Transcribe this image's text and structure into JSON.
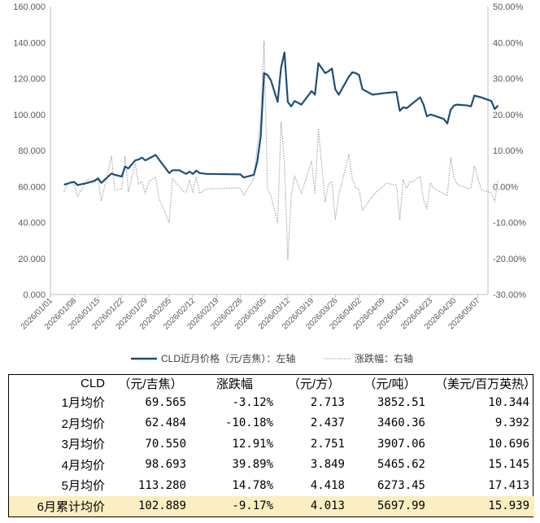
{
  "chart_data": {
    "type": "line",
    "left_axis": {
      "ticks": [
        "0.000",
        "20.000",
        "40.000",
        "60.000",
        "80.000",
        "100.000",
        "120.000",
        "140.000",
        "160.000"
      ],
      "range": [
        0,
        160
      ]
    },
    "right_axis": {
      "ticks": [
        "-30.00%",
        "-20.00%",
        "-10.00%",
        "0.00%",
        "10.00%",
        "20.00%",
        "30.00%",
        "40.00%",
        "50.00%"
      ],
      "range": [
        -30,
        50
      ]
    },
    "x_ticks": [
      "2026/01/01",
      "2026/01/08",
      "2026/01/15",
      "2026/01/22",
      "2026/01/29",
      "2026/02/05",
      "2026/02/12",
      "2026/02/19",
      "2026/02/26",
      "2026/03/05",
      "2026/03/12",
      "2026/03/19",
      "2026/03/26",
      "2026/04/02",
      "2026/04/09",
      "2026/04/16",
      "2026/04/23",
      "2026/04/30",
      "2026/05/07"
    ],
    "x_range": [
      "2026/01/01",
      "2026/05/10"
    ],
    "series": [
      {
        "name": "CLD近月价格（元/吉焦）：左轴",
        "axis": "left",
        "color": "#1f4e79",
        "style": "solid",
        "points": [
          [
            "2026/01/05",
            61.0
          ],
          [
            "2026/01/06",
            61.5
          ],
          [
            "2026/01/07",
            62.2
          ],
          [
            "2026/01/08",
            62.5
          ],
          [
            "2026/01/09",
            60.8
          ],
          [
            "2026/01/12",
            62.0
          ],
          [
            "2026/01/13",
            62.6
          ],
          [
            "2026/01/14",
            63.2
          ],
          [
            "2026/01/15",
            64.5
          ],
          [
            "2026/01/16",
            62.0
          ],
          [
            "2026/01/19",
            67.2
          ],
          [
            "2026/01/20",
            66.5
          ],
          [
            "2026/01/21",
            66.0
          ],
          [
            "2026/01/22",
            65.5
          ],
          [
            "2026/01/23",
            71.0
          ],
          [
            "2026/01/24",
            70.0
          ],
          [
            "2026/01/26",
            74.5
          ],
          [
            "2026/01/27",
            75.0
          ],
          [
            "2026/01/28",
            76.0
          ],
          [
            "2026/01/29",
            74.5
          ],
          [
            "2026/01/30",
            75.5
          ],
          [
            "2026/02/01",
            77.5
          ],
          [
            "2026/02/02",
            75.0
          ],
          [
            "2026/02/05",
            67.5
          ],
          [
            "2026/02/06",
            69.0
          ],
          [
            "2026/02/08",
            69.0
          ],
          [
            "2026/02/09",
            68.0
          ],
          [
            "2026/02/10",
            67.0
          ],
          [
            "2026/02/11",
            68.2
          ],
          [
            "2026/02/12",
            67.0
          ],
          [
            "2026/02/13",
            68.8
          ],
          [
            "2026/02/14",
            67.5
          ],
          [
            "2026/02/16",
            67.0
          ],
          [
            "2026/02/26",
            66.7
          ],
          [
            "2026/02/27",
            65.0
          ],
          [
            "2026/03/02",
            66.5
          ],
          [
            "2026/03/03",
            74.0
          ],
          [
            "2026/03/04",
            88.0
          ],
          [
            "2026/03/05",
            123.0
          ],
          [
            "2026/03/06",
            122.0
          ],
          [
            "2026/03/07",
            119.0
          ],
          [
            "2026/03/09",
            107.0
          ],
          [
            "2026/03/10",
            126.0
          ],
          [
            "2026/03/11",
            134.5
          ],
          [
            "2026/03/12",
            107.0
          ],
          [
            "2026/03/13",
            104.5
          ],
          [
            "2026/03/14",
            107.5
          ],
          [
            "2026/03/16",
            105.5
          ],
          [
            "2026/03/19",
            113.0
          ],
          [
            "2026/03/20",
            111.0
          ],
          [
            "2026/03/21",
            128.5
          ],
          [
            "2026/03/23",
            123.0
          ],
          [
            "2026/03/24",
            124.0
          ],
          [
            "2026/03/25",
            125.5
          ],
          [
            "2026/03/26",
            114.0
          ],
          [
            "2026/03/27",
            111.0
          ],
          [
            "2026/03/30",
            121.0
          ],
          [
            "2026/03/31",
            123.5
          ],
          [
            "2026/04/01",
            123.0
          ],
          [
            "2026/04/02",
            122.0
          ],
          [
            "2026/04/03",
            114.0
          ],
          [
            "2026/04/06",
            111.0
          ],
          [
            "2026/04/10",
            112.0
          ],
          [
            "2026/04/13",
            112.5
          ],
          [
            "2026/04/14",
            102.0
          ],
          [
            "2026/04/15",
            104.0
          ],
          [
            "2026/04/16",
            103.5
          ],
          [
            "2026/04/17",
            105.0
          ],
          [
            "2026/04/18",
            106.5
          ],
          [
            "2026/04/20",
            109.5
          ],
          [
            "2026/04/21",
            105.5
          ],
          [
            "2026/04/22",
            99.0
          ],
          [
            "2026/04/23",
            100.0
          ],
          [
            "2026/04/24",
            99.5
          ],
          [
            "2026/04/27",
            97.5
          ],
          [
            "2026/04/28",
            95.0
          ],
          [
            "2026/04/29",
            102.5
          ],
          [
            "2026/04/30",
            105.0
          ],
          [
            "2026/05/01",
            105.5
          ],
          [
            "2026/05/04",
            105.0
          ],
          [
            "2026/05/05",
            104.5
          ],
          [
            "2026/05/06",
            110.5
          ],
          [
            "2026/05/08",
            109.5
          ],
          [
            "2026/05/11",
            107.5
          ],
          [
            "2026/05/12",
            103.0
          ],
          [
            "2026/05/13",
            105.0
          ]
        ]
      },
      {
        "name": "涨跌幅：右轴",
        "axis": "right",
        "color": "#a6a6a6",
        "style": "dotted",
        "points": [
          [
            "2026/01/05",
            -1.5
          ],
          [
            "2026/01/06",
            0.8
          ],
          [
            "2026/01/07",
            1.1
          ],
          [
            "2026/01/08",
            0.5
          ],
          [
            "2026/01/09",
            -2.8
          ],
          [
            "2026/01/12",
            2.0
          ],
          [
            "2026/01/13",
            1.0
          ],
          [
            "2026/01/14",
            1.0
          ],
          [
            "2026/01/15",
            2.1
          ],
          [
            "2026/01/16",
            -3.9
          ],
          [
            "2026/01/19",
            8.4
          ],
          [
            "2026/01/20",
            -1.0
          ],
          [
            "2026/01/21",
            -0.8
          ],
          [
            "2026/01/22",
            -0.8
          ],
          [
            "2026/01/23",
            8.4
          ],
          [
            "2026/01/24",
            -1.4
          ],
          [
            "2026/01/26",
            6.4
          ],
          [
            "2026/01/27",
            0.7
          ],
          [
            "2026/01/28",
            1.3
          ],
          [
            "2026/01/29",
            -2.0
          ],
          [
            "2026/01/30",
            1.3
          ],
          [
            "2026/02/01",
            2.6
          ],
          [
            "2026/02/02",
            -3.2
          ],
          [
            "2026/02/05",
            -10.0
          ],
          [
            "2026/02/06",
            2.2
          ],
          [
            "2026/02/08",
            0.0
          ],
          [
            "2026/02/09",
            -1.4
          ],
          [
            "2026/02/10",
            -1.5
          ],
          [
            "2026/02/11",
            1.8
          ],
          [
            "2026/02/12",
            -1.8
          ],
          [
            "2026/02/13",
            2.7
          ],
          [
            "2026/02/14",
            -1.9
          ],
          [
            "2026/02/16",
            -0.7
          ],
          [
            "2026/02/26",
            -0.4
          ],
          [
            "2026/02/27",
            -2.5
          ],
          [
            "2026/03/02",
            2.3
          ],
          [
            "2026/03/03",
            11.3
          ],
          [
            "2026/03/04",
            18.9
          ],
          [
            "2026/03/05",
            40.5
          ],
          [
            "2026/03/06",
            -0.8
          ],
          [
            "2026/03/07",
            -2.5
          ],
          [
            "2026/03/09",
            -10.1
          ],
          [
            "2026/03/10",
            17.8
          ],
          [
            "2026/03/11",
            6.7
          ],
          [
            "2026/03/12",
            -20.4
          ],
          [
            "2026/03/13",
            -2.3
          ],
          [
            "2026/03/14",
            2.9
          ],
          [
            "2026/03/16",
            -1.9
          ],
          [
            "2026/03/19",
            7.1
          ],
          [
            "2026/03/20",
            -1.8
          ],
          [
            "2026/03/21",
            15.8
          ],
          [
            "2026/03/23",
            -4.3
          ],
          [
            "2026/03/24",
            0.8
          ],
          [
            "2026/03/25",
            1.2
          ],
          [
            "2026/03/26",
            -9.2
          ],
          [
            "2026/03/27",
            -2.6
          ],
          [
            "2026/03/30",
            9.0
          ],
          [
            "2026/03/31",
            2.1
          ],
          [
            "2026/04/01",
            -0.4
          ],
          [
            "2026/04/02",
            -0.8
          ],
          [
            "2026/04/03",
            -6.6
          ],
          [
            "2026/04/06",
            -2.6
          ],
          [
            "2026/04/10",
            0.9
          ],
          [
            "2026/04/13",
            0.4
          ],
          [
            "2026/04/14",
            -9.3
          ],
          [
            "2026/04/15",
            2.0
          ],
          [
            "2026/04/16",
            -0.5
          ],
          [
            "2026/04/17",
            1.4
          ],
          [
            "2026/04/18",
            1.4
          ],
          [
            "2026/04/20",
            2.8
          ],
          [
            "2026/04/21",
            -3.7
          ],
          [
            "2026/04/22",
            -6.2
          ],
          [
            "2026/04/23",
            1.0
          ],
          [
            "2026/04/24",
            -0.5
          ],
          [
            "2026/04/27",
            -2.0
          ],
          [
            "2026/04/28",
            -2.6
          ],
          [
            "2026/04/29",
            7.9
          ],
          [
            "2026/04/30",
            2.4
          ],
          [
            "2026/05/01",
            0.5
          ],
          [
            "2026/05/04",
            -0.5
          ],
          [
            "2026/05/05",
            -0.5
          ],
          [
            "2026/05/06",
            5.7
          ],
          [
            "2026/05/08",
            -0.9
          ],
          [
            "2026/05/11",
            -1.8
          ],
          [
            "2026/05/12",
            -4.2
          ],
          [
            "2026/05/13",
            1.9
          ]
        ]
      }
    ]
  },
  "table": {
    "headers": [
      "CLD",
      "（元/吉焦）",
      "涨跌幅",
      "（元/方）",
      "（元/吨）",
      "（美元/百万英热）"
    ],
    "rows": [
      {
        "label": "1月均价",
        "values": [
          "69.565",
          "-3.12%",
          "2.713",
          "3852.51",
          "10.344"
        ]
      },
      {
        "label": "2月均价",
        "values": [
          "62.484",
          "-10.18%",
          "2.437",
          "3460.36",
          "9.392"
        ]
      },
      {
        "label": "3月均价",
        "values": [
          "70.550",
          "12.91%",
          "2.751",
          "3907.06",
          "10.696"
        ]
      },
      {
        "label": "4月均价",
        "values": [
          "98.693",
          "39.89%",
          "3.849",
          "5465.62",
          "15.145"
        ]
      },
      {
        "label": "5月均价",
        "values": [
          "113.280",
          "14.78%",
          "4.418",
          "6273.45",
          "17.413"
        ]
      },
      {
        "label": "6月累计均价",
        "values": [
          "102.889",
          "-9.17%",
          "4.013",
          "5697.99",
          "15.939"
        ],
        "highlight": true
      }
    ],
    "highlight_color": "#fbeec1"
  }
}
